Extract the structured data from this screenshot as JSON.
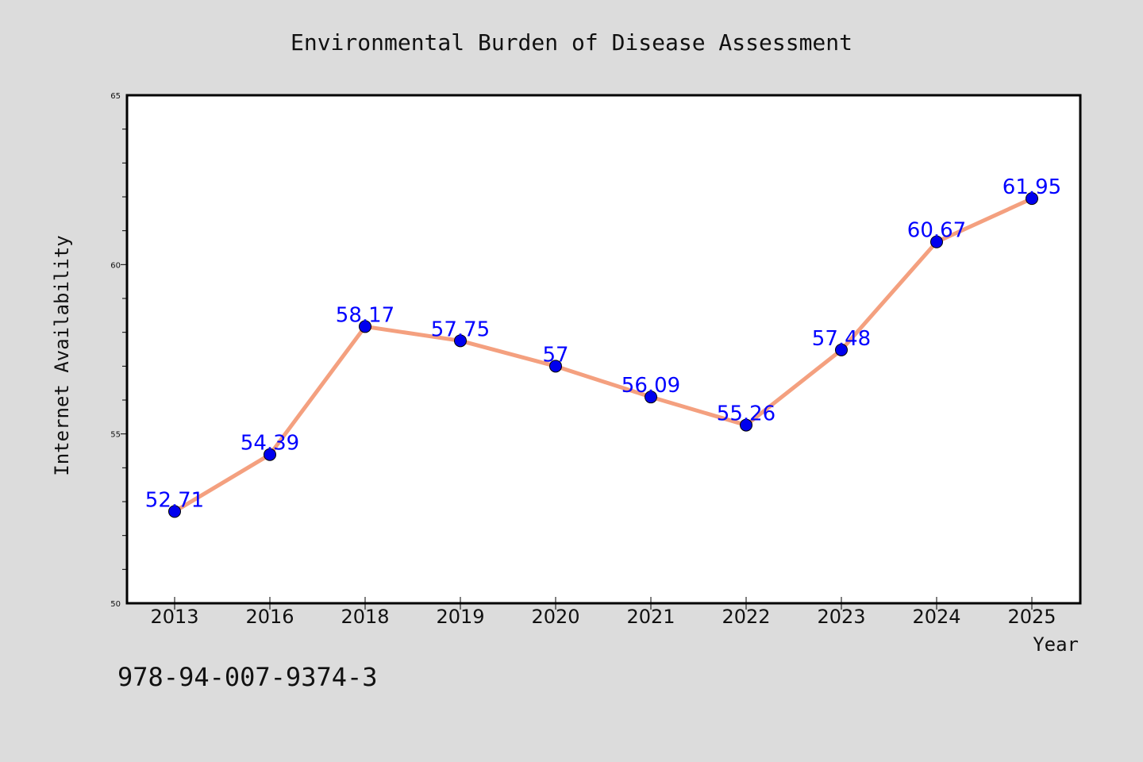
{
  "chart_data": {
    "type": "line",
    "title": "Environmental Burden of Disease Assessment",
    "xlabel": "Year",
    "ylabel": "Internet Availability",
    "categories": [
      "2013",
      "2016",
      "2018",
      "2019",
      "2020",
      "2021",
      "2022",
      "2023",
      "2024",
      "2025"
    ],
    "series": [
      {
        "values": [
          52.71,
          54.39,
          58.17,
          57.75,
          57,
          56.09,
          55.26,
          57.48,
          60.67,
          61.95
        ],
        "labels": [
          "52.71",
          "54.39",
          "58.17",
          "57.75",
          "57",
          "56.09",
          "55.26",
          "57.48",
          "60.67",
          "61.95"
        ],
        "line_color": "#f4a07f",
        "marker_color": "#0000ee"
      }
    ],
    "ylim": [
      50,
      65
    ],
    "yticks": [
      "50",
      "55",
      "60",
      "65"
    ],
    "grid": false,
    "legend": "none"
  },
  "footnote": "978-94-007-9374-3",
  "colors": {
    "background": "#dcdcdc",
    "plot_background": "#ffffff",
    "label_color": "#0000ff"
  }
}
